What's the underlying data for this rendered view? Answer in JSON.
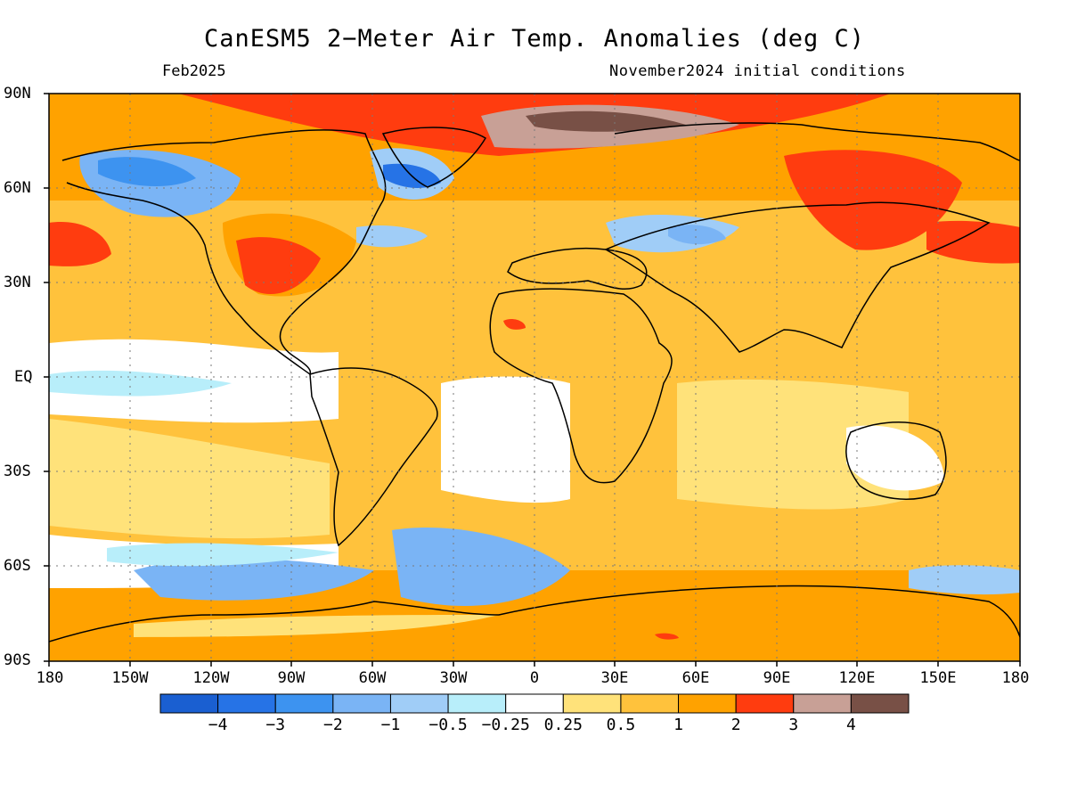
{
  "title": "CanESM5 2−Meter Air Temp. Anomalies (deg C)",
  "subtitle_left": "Feb2025",
  "subtitle_right": "November2024 initial conditions",
  "lat_labels": [
    "90N",
    "60N",
    "30N",
    "EQ",
    "30S",
    "60S",
    "90S"
  ],
  "lon_labels": [
    "180",
    "150W",
    "120W",
    "90W",
    "60W",
    "30W",
    "0",
    "30E",
    "60E",
    "90E",
    "120E",
    "150E",
    "180"
  ],
  "colorbar": {
    "colors": [
      "#1a5fd1",
      "#2673e6",
      "#3d93f0",
      "#7ab4f5",
      "#a0cdf7",
      "#b8eefa",
      "#ffffff",
      "#ffe27a",
      "#ffc23c",
      "#ffa200",
      "#ff3c0f",
      "#c8a096",
      "#785046"
    ],
    "labels": [
      "−4",
      "−3",
      "−2",
      "−1",
      "−0.5",
      "−0.25",
      "0.25",
      "0.5",
      "1",
      "2",
      "3",
      "4"
    ]
  }
}
